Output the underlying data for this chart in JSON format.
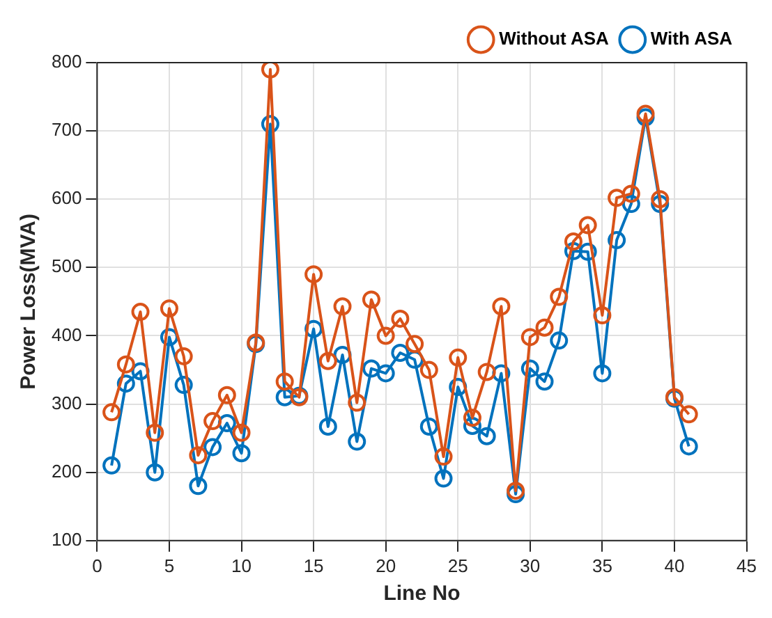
{
  "chart_data": {
    "type": "line",
    "xlabel": "Line No",
    "ylabel": "Power Loss(MVA)",
    "x": [
      1,
      2,
      3,
      4,
      5,
      6,
      7,
      8,
      9,
      10,
      11,
      12,
      13,
      14,
      15,
      16,
      17,
      18,
      19,
      20,
      21,
      22,
      23,
      24,
      25,
      26,
      27,
      28,
      29,
      30,
      31,
      32,
      33,
      34,
      35,
      36,
      37,
      38,
      39,
      40,
      41
    ],
    "series": [
      {
        "name": "With ASA",
        "color": "#0072bd",
        "values": [
          210,
          330,
          348,
          200,
          398,
          328,
          180,
          237,
          272,
          228,
          388,
          710,
          310,
          312,
          410,
          267,
          372,
          245,
          352,
          345,
          375,
          365,
          267,
          191,
          325,
          268,
          253,
          345,
          168,
          352,
          333,
          393,
          524,
          523,
          345,
          540,
          593,
          720,
          593,
          308,
          238
        ]
      },
      {
        "name": "Without ASA",
        "color": "#d95319",
        "values": [
          288,
          358,
          435,
          258,
          440,
          370,
          225,
          275,
          313,
          258,
          390,
          790,
          333,
          310,
          490,
          363,
          443,
          302,
          453,
          400,
          425,
          388,
          350,
          223,
          368,
          280,
          347,
          443,
          173,
          398,
          412,
          457,
          538,
          562,
          430,
          602,
          608,
          725,
          600,
          310,
          285
        ]
      }
    ],
    "xlim": [
      0,
      45
    ],
    "xticks": [
      0,
      5,
      10,
      15,
      20,
      25,
      30,
      35,
      40,
      45
    ],
    "ylim": [
      100,
      800
    ],
    "yticks": [
      100,
      200,
      300,
      400,
      500,
      600,
      700,
      800
    ],
    "grid": true,
    "legend": "top right",
    "marker": "circle",
    "line_style": "solid"
  }
}
